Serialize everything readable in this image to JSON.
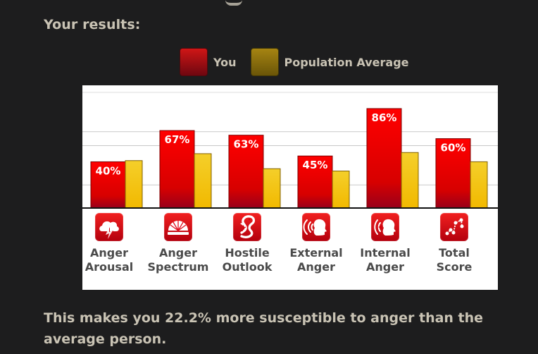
{
  "page": {
    "results_title": "Your results:",
    "summary_text": "This makes you 22.2% more susceptible to anger than the average person.",
    "background_color": "#1d1d1e",
    "text_color": "#c9c3b4"
  },
  "legend": {
    "you_label": "You",
    "average_label": "Population Average"
  },
  "chart_data": {
    "type": "bar",
    "categories": [
      "Anger Arousal",
      "Anger Spectrum",
      "Hostile Outlook",
      "External Anger",
      "Internal Anger",
      "Total Score"
    ],
    "series": [
      {
        "name": "You",
        "values": [
          40,
          67,
          63,
          45,
          86,
          60
        ],
        "labels": [
          "40%",
          "67%",
          "63%",
          "45%",
          "86%",
          "60%"
        ],
        "color": "#e40000"
      },
      {
        "name": "Population Average",
        "values": [
          41,
          47,
          34,
          32,
          48,
          40
        ],
        "color": "#f5ca1f"
      }
    ],
    "ylim": [
      0,
      100
    ],
    "grid": true,
    "legend_position": "top-center"
  },
  "categories": [
    {
      "label_lines": [
        "Anger",
        "Arousal"
      ],
      "icon": "lightning-cloud-icon"
    },
    {
      "label_lines": [
        "Anger",
        "Spectrum"
      ],
      "icon": "spectrum-gauge-icon"
    },
    {
      "label_lines": [
        "Hostile",
        "Outlook"
      ],
      "icon": "cobra-icon"
    },
    {
      "label_lines": [
        "External",
        "Anger"
      ],
      "icon": "loud-head-icon"
    },
    {
      "label_lines": [
        "Internal",
        "Anger"
      ],
      "icon": "internal-head-icon"
    },
    {
      "label_lines": [
        "Total",
        "Score"
      ],
      "icon": "connected-dots-icon"
    }
  ]
}
